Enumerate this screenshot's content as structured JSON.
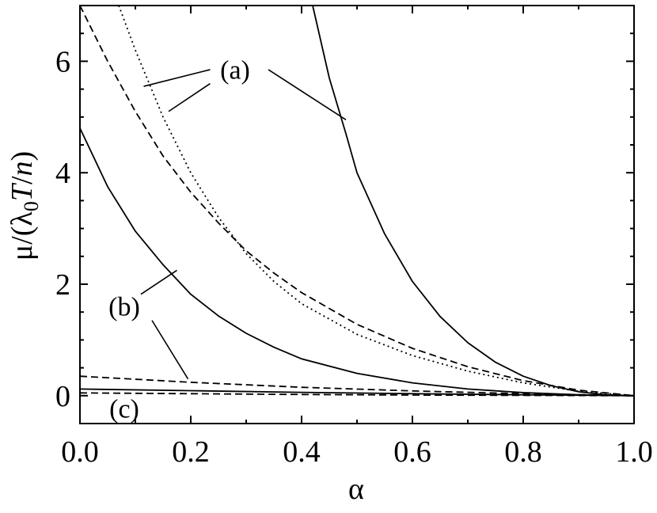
{
  "chart_data": {
    "type": "line",
    "title": "",
    "xlabel": "α",
    "ylabel": {
      "prefix": "μ/(λ",
      "subscript": "0",
      "T": "T",
      "slash": "/",
      "n": "n",
      "suffix": ")"
    },
    "xlim": [
      0.0,
      1.0
    ],
    "ylim": [
      -0.5,
      7.0
    ],
    "x_ticks": [
      0.0,
      0.2,
      0.4,
      0.6,
      0.8,
      1.0
    ],
    "x_tick_labels": [
      "0.0",
      "0.2",
      "0.4",
      "0.6",
      "0.8",
      "1.0"
    ],
    "y_ticks": [
      0,
      2,
      4,
      6
    ],
    "y_tick_labels": [
      "0",
      "2",
      "4",
      "6"
    ],
    "grid": false,
    "legend": "none",
    "series": [
      {
        "group": "a",
        "style": "solid",
        "x": [
          0.42,
          0.45,
          0.48,
          0.5,
          0.55,
          0.6,
          0.65,
          0.7,
          0.75,
          0.8,
          0.85,
          0.9,
          0.95,
          1.0
        ],
        "y": [
          7.0,
          5.7,
          4.7,
          4.0,
          2.9,
          2.05,
          1.42,
          0.95,
          0.6,
          0.35,
          0.18,
          0.07,
          0.015,
          0.0
        ]
      },
      {
        "group": "a",
        "style": "dashed",
        "x": [
          0.0,
          0.05,
          0.1,
          0.15,
          0.2,
          0.25,
          0.3,
          0.35,
          0.4,
          0.5,
          0.6,
          0.7,
          0.8,
          0.9,
          1.0
        ],
        "y": [
          7.0,
          6.0,
          5.1,
          4.3,
          3.65,
          3.1,
          2.6,
          2.2,
          1.85,
          1.28,
          0.85,
          0.52,
          0.27,
          0.1,
          0.0
        ]
      },
      {
        "group": "a",
        "style": "dotted",
        "x": [
          0.07,
          0.1,
          0.15,
          0.2,
          0.25,
          0.3,
          0.35,
          0.4,
          0.5,
          0.6,
          0.7,
          0.8,
          0.9,
          1.0
        ],
        "y": [
          7.0,
          6.2,
          5.0,
          4.0,
          3.2,
          2.55,
          2.05,
          1.65,
          1.1,
          0.72,
          0.44,
          0.23,
          0.08,
          0.0
        ]
      },
      {
        "group": "b",
        "style": "solid",
        "x": [
          0.0,
          0.05,
          0.1,
          0.15,
          0.2,
          0.25,
          0.3,
          0.35,
          0.4,
          0.5,
          0.6,
          0.7,
          0.8,
          0.9,
          1.0
        ],
        "y": [
          4.8,
          3.75,
          2.95,
          2.35,
          1.82,
          1.43,
          1.12,
          0.87,
          0.66,
          0.4,
          0.23,
          0.12,
          0.055,
          0.015,
          0.0
        ]
      },
      {
        "group": "b",
        "style": "dashed",
        "x": [
          0.0,
          0.2,
          0.4,
          0.6,
          0.8,
          1.0
        ],
        "y": [
          0.35,
          0.24,
          0.15,
          0.085,
          0.035,
          0.0
        ]
      },
      {
        "group": "c",
        "style": "solid",
        "x": [
          0.0,
          0.2,
          0.4,
          0.6,
          0.8,
          1.0
        ],
        "y": [
          0.12,
          0.09,
          0.06,
          0.035,
          0.015,
          0.0
        ]
      },
      {
        "group": "c",
        "style": "dashed",
        "x": [
          0.0,
          0.2,
          0.4,
          0.6,
          0.8,
          1.0
        ],
        "y": [
          0.05,
          0.035,
          0.022,
          0.012,
          0.005,
          0.0
        ]
      }
    ],
    "annotations": [
      {
        "text": "(a)",
        "x": 0.28,
        "y": 5.8
      },
      {
        "text": "(b)",
        "x": 0.08,
        "y": 1.55
      },
      {
        "text": "(c)",
        "x": 0.08,
        "y": -0.28
      }
    ],
    "leader_lines": [
      {
        "label": "(a)",
        "from": [
          0.235,
          5.85
        ],
        "to": [
          0.115,
          5.55
        ]
      },
      {
        "label": "(a)",
        "from": [
          0.235,
          5.6
        ],
        "to": [
          0.16,
          5.1
        ]
      },
      {
        "label": "(a)",
        "from": [
          0.34,
          5.85
        ],
        "to": [
          0.48,
          4.95
        ]
      },
      {
        "label": "(b)",
        "from": [
          0.11,
          1.82
        ],
        "to": [
          0.175,
          2.25
        ]
      },
      {
        "label": "(b)",
        "from": [
          0.13,
          1.35
        ],
        "to": [
          0.195,
          0.3
        ]
      }
    ]
  }
}
